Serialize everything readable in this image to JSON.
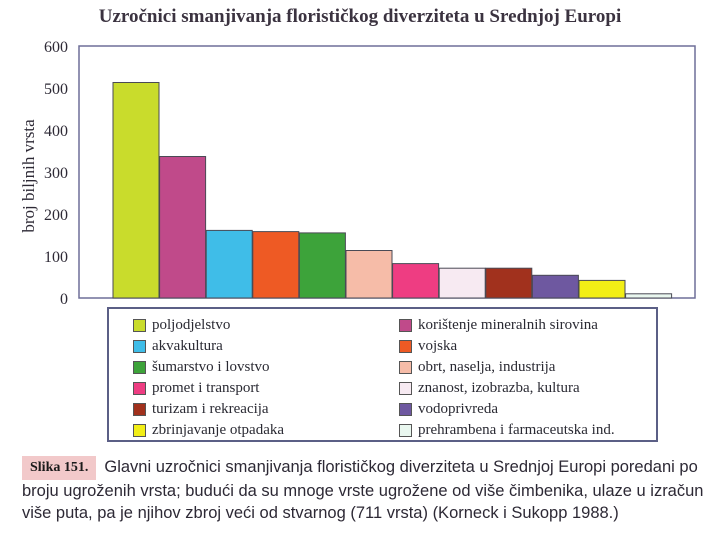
{
  "chart_data": {
    "type": "bar",
    "title": "Uzročnici smanjivanja florističkog diverziteta u Srednjoj Europi",
    "ylabel": "broj biljnih vrsta",
    "xlabel": "",
    "ylim": [
      0,
      600
    ],
    "yticks": [
      "0",
      "100",
      "200",
      "300",
      "400",
      "500",
      "600"
    ],
    "categories": [
      "poljodjelstvo",
      "korištenje mineralnih sirovina",
      "akvakultura",
      "vojska",
      "šumarstvo i lovstvo",
      "obrt, naselja, industrija",
      "promet i transport",
      "znanost, izobrazba, kultura",
      "turizam i rekreacija",
      "vodoprivreda",
      "zbrinjavanje otpadaka",
      "prehrambena i farmaceutska ind."
    ],
    "values": [
      513,
      337,
      161,
      158,
      155,
      113,
      82,
      71,
      71,
      54,
      42,
      10
    ],
    "colors": [
      "#c9dc2c",
      "#c04a8a",
      "#3fbde8",
      "#ee5a24",
      "#3da33a",
      "#f6bca8",
      "#ee3d82",
      "#f7eaf2",
      "#a1311d",
      "#6e58a0",
      "#f2ee16",
      "#e9f7ef"
    ],
    "grid": false,
    "legend_position": "bottom"
  },
  "caption": {
    "label": "Slika 151.",
    "line1": "Glavni uzročnici smanjivanja florističkog diverziteta u Srednjoj Europi poredani po",
    "line2": "broju ugroženih vrsta; budući da su mnoge vrste ugrožene od više čimbenika, ulaze u izračun",
    "line3": "više puta, pa je njihov zbroj veći od stvarnog (711 vrsta) (Korneck i Sukopp 1988.)"
  }
}
